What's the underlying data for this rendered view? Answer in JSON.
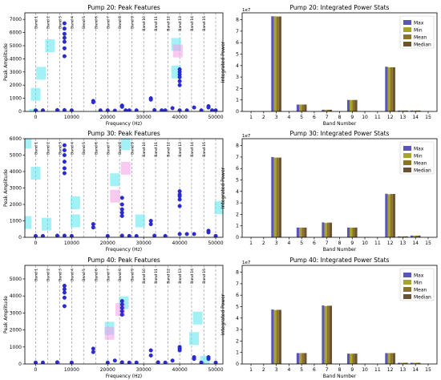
{
  "figure": {
    "colors": {
      "scatter": "#2b2bd6",
      "scatter_edge": "#1e1ea8",
      "band_line": "#8a8a8a",
      "cyan_patch": "#55e6ee",
      "pink_patch": "#f49de8",
      "max": "#5a56b5",
      "min": "#a7a32c",
      "mean": "#8b7328",
      "median": "#6a5232"
    }
  },
  "chart_data": [
    {
      "type": "scatter",
      "title": "Pump 20: Peak Features",
      "xlabel": "Frequency (Hz)",
      "ylabel": "Peak Amplitude",
      "xlim": [
        -3000,
        52000
      ],
      "ylim": [
        0,
        7500
      ],
      "xticks": [
        0,
        10000,
        20000,
        30000,
        40000,
        50000
      ],
      "xtick_labels": [
        "0",
        "10000",
        "20000",
        "30000",
        "40000",
        "50000"
      ],
      "yticks": [
        0,
        1000,
        2000,
        3000,
        4000,
        5000,
        6000,
        7000
      ],
      "ytick_labels": [
        "0",
        "1000",
        "2000",
        "3000",
        "4000",
        "5000",
        "6000",
        "7000"
      ],
      "band_labels": [
        "Band 1",
        "Band 2",
        "Band 3",
        "Band 4",
        "Band 5",
        "Band 6",
        "Band 7",
        "Band 8",
        "Band 9",
        "Band 10",
        "Band 11",
        "Band 12",
        "Band 13",
        "Band 14",
        "Band 15"
      ],
      "band_edges": [
        0,
        3300,
        6700,
        10000,
        13300,
        16700,
        20000,
        23300,
        26700,
        30000,
        33300,
        36700,
        40000,
        43300,
        46700,
        50000
      ],
      "points": {
        "x": [
          0,
          2000,
          6000,
          8000,
          8000,
          8000,
          8000,
          8000,
          8000,
          8000,
          8000,
          10000,
          16000,
          16000,
          18000,
          20000,
          22000,
          24000,
          24000,
          25000,
          26000,
          28000,
          32000,
          32000,
          33000,
          35000,
          36000,
          38000,
          40000,
          40000,
          40000,
          40000,
          40000,
          40000,
          40000,
          42000,
          44000,
          46000,
          48000,
          48000,
          49000,
          50000
        ],
        "y": [
          80,
          80,
          100,
          6700,
          6300,
          5900,
          5600,
          5300,
          4800,
          4200,
          100,
          80,
          800,
          700,
          80,
          80,
          60,
          450,
          350,
          80,
          80,
          80,
          1000,
          900,
          100,
          80,
          80,
          250,
          3200,
          3000,
          2800,
          2600,
          2300,
          2000,
          80,
          80,
          300,
          80,
          400,
          300,
          80,
          80
        ]
      },
      "patches": [
        {
          "x": 0,
          "y": 1300,
          "color": "cyan"
        },
        {
          "x": 1500,
          "y": 2900,
          "color": "cyan"
        },
        {
          "x": 4000,
          "y": 5000,
          "color": "cyan"
        },
        {
          "x": -500,
          "y": -300,
          "color": "cyan"
        },
        {
          "x": 39000,
          "y": 5100,
          "color": "cyan"
        },
        {
          "x": 39500,
          "y": 4600,
          "color": "pink"
        },
        {
          "x": 39000,
          "y": 3000,
          "color": "cyan"
        }
      ]
    },
    {
      "type": "bar",
      "title": "Pump 20: Integrated Power Stats",
      "xlabel": "Band Number",
      "ylabel": "Integrated Power",
      "exponent_label": "1e7",
      "categories": [
        "1",
        "2",
        "3",
        "4",
        "5",
        "6",
        "7",
        "8",
        "9",
        "10",
        "11",
        "12",
        "13",
        "14",
        "15"
      ],
      "ylim": [
        0,
        8.6
      ],
      "yticks": [
        0,
        1,
        2,
        3,
        4,
        5,
        6,
        7,
        8
      ],
      "legend_position": "top-right",
      "series": [
        {
          "name": "Max",
          "values": [
            0,
            0,
            8.3,
            0,
            0.6,
            0,
            0.15,
            0,
            1.0,
            0.02,
            0,
            3.9,
            0.08,
            0.08,
            0
          ]
        },
        {
          "name": "Min",
          "values": [
            0,
            0,
            8.3,
            0,
            0.6,
            0,
            0.15,
            0,
            1.0,
            0.02,
            0,
            3.85,
            0.08,
            0.08,
            0
          ]
        },
        {
          "name": "Mean",
          "values": [
            0,
            0,
            8.28,
            0,
            0.6,
            0,
            0.15,
            0,
            1.0,
            0.02,
            0,
            3.85,
            0.08,
            0.08,
            0
          ]
        },
        {
          "name": "Median",
          "values": [
            0,
            0,
            8.28,
            0,
            0.6,
            0,
            0.15,
            0,
            1.0,
            0.02,
            0,
            3.85,
            0.08,
            0.08,
            0
          ]
        }
      ]
    },
    {
      "type": "scatter",
      "title": "Pump 30: Peak Features",
      "xlabel": "Frequency (Hz)",
      "ylabel": "Peak Amplitude",
      "xlim": [
        -3000,
        52000
      ],
      "ylim": [
        0,
        6000
      ],
      "xticks": [
        0,
        10000,
        20000,
        30000,
        40000,
        50000
      ],
      "xtick_labels": [
        "0",
        "10000",
        "20000",
        "30000",
        "40000",
        "50000"
      ],
      "yticks": [
        0,
        1000,
        2000,
        3000,
        4000,
        5000,
        6000
      ],
      "ytick_labels": [
        "0",
        "1000",
        "2000",
        "3000",
        "4000",
        "5000",
        "6000"
      ],
      "band_labels": [
        "Band 1",
        "Band 2",
        "Band 3",
        "Band 4",
        "Band 5",
        "Band 6",
        "Band 7",
        "Band 8",
        "Band 9",
        "Band 10",
        "Band 11",
        "Band 12",
        "Band 13",
        "Band 14",
        "Band 15"
      ],
      "band_edges": [
        0,
        3300,
        6700,
        10000,
        13300,
        16700,
        20000,
        23300,
        26700,
        30000,
        33300,
        36700,
        40000,
        43300,
        46700,
        50000
      ],
      "points": {
        "x": [
          0,
          2000,
          6000,
          8000,
          8000,
          8000,
          8000,
          8000,
          8000,
          8000,
          10000,
          16000,
          16000,
          20000,
          24000,
          24000,
          24000,
          24000,
          24000,
          24000,
          26000,
          28000,
          32000,
          32000,
          33000,
          36000,
          40000,
          40000,
          40000,
          40000,
          40000,
          40000,
          42000,
          44000,
          48000,
          48000,
          50000
        ],
        "y": [
          80,
          80,
          100,
          5600,
          5300,
          5000,
          4600,
          4200,
          3900,
          100,
          80,
          800,
          600,
          80,
          2400,
          2000,
          1700,
          1500,
          1300,
          100,
          80,
          80,
          1000,
          800,
          100,
          80,
          2800,
          2600,
          2500,
          2300,
          1900,
          200,
          200,
          200,
          400,
          300,
          80
        ]
      },
      "patches": [
        {
          "x": -2500,
          "y": 5800,
          "color": "cyan"
        },
        {
          "x": -2500,
          "y": 900,
          "color": "cyan"
        },
        {
          "x": 0,
          "y": 3900,
          "color": "cyan"
        },
        {
          "x": 3000,
          "y": 800,
          "color": "cyan"
        },
        {
          "x": 11000,
          "y": 2100,
          "color": "cyan"
        },
        {
          "x": 11000,
          "y": 1000,
          "color": "cyan"
        },
        {
          "x": 22000,
          "y": 3500,
          "color": "cyan"
        },
        {
          "x": 22000,
          "y": 2500,
          "color": "pink"
        },
        {
          "x": 25000,
          "y": 5700,
          "color": "cyan"
        },
        {
          "x": 25000,
          "y": 4200,
          "color": "pink"
        },
        {
          "x": 29000,
          "y": 1000,
          "color": "cyan"
        },
        {
          "x": 51000,
          "y": 1800,
          "color": "cyan"
        }
      ]
    },
    {
      "type": "bar",
      "title": "Pump 30: Integrated Power Stats",
      "xlabel": "Band Number",
      "ylabel": "Integrated Power",
      "exponent_label": "1e7",
      "categories": [
        "1",
        "2",
        "3",
        "4",
        "5",
        "6",
        "7",
        "8",
        "9",
        "10",
        "11",
        "12",
        "13",
        "14",
        "15"
      ],
      "ylim": [
        0,
        8.6
      ],
      "yticks": [
        0,
        1,
        2,
        3,
        4,
        5,
        6,
        7,
        8
      ],
      "legend_position": "top-right",
      "series": [
        {
          "name": "Max",
          "values": [
            0,
            0,
            7.0,
            0,
            0.85,
            0,
            1.3,
            0,
            0.85,
            0.02,
            0,
            3.8,
            0.08,
            0.15,
            0
          ]
        },
        {
          "name": "Min",
          "values": [
            0,
            0,
            6.95,
            0,
            0.85,
            0,
            1.25,
            0,
            0.85,
            0.02,
            0,
            3.75,
            0.08,
            0.15,
            0
          ]
        },
        {
          "name": "Mean",
          "values": [
            0,
            0,
            6.95,
            0,
            0.85,
            0,
            1.28,
            0,
            0.85,
            0.02,
            0,
            3.78,
            0.08,
            0.15,
            0
          ]
        },
        {
          "name": "Median",
          "values": [
            0,
            0,
            6.95,
            0,
            0.85,
            0,
            1.28,
            0,
            0.85,
            0.02,
            0,
            3.78,
            0.08,
            0.15,
            0
          ]
        }
      ]
    },
    {
      "type": "scatter",
      "title": "Pump 40: Peak Features",
      "xlabel": "Frequency (Hz)",
      "ylabel": "Peak Amplitude",
      "xlim": [
        -3000,
        52000
      ],
      "ylim": [
        0,
        5800
      ],
      "xticks": [
        0,
        10000,
        20000,
        30000,
        40000,
        50000
      ],
      "xtick_labels": [
        "0",
        "10000",
        "20000",
        "30000",
        "40000",
        "50000"
      ],
      "yticks": [
        0,
        1000,
        2000,
        3000,
        4000,
        5000
      ],
      "ytick_labels": [
        "0",
        "1000",
        "2000",
        "3000",
        "4000",
        "5000"
      ],
      "band_labels": [
        "Band 1",
        "Band 2",
        "Band 3",
        "Band 4",
        "Band 5",
        "Band 6",
        "Band 7",
        "Band 8",
        "Band 9",
        "Band 10",
        "Band 11",
        "Band 12",
        "Band 13",
        "Band 14",
        "Band 15"
      ],
      "band_edges": [
        0,
        3300,
        6700,
        10000,
        13300,
        16700,
        20000,
        23300,
        26700,
        30000,
        33300,
        36700,
        40000,
        43300,
        46700,
        50000
      ],
      "points": {
        "x": [
          0,
          2000,
          6000,
          8000,
          8000,
          8000,
          8000,
          8000,
          10000,
          16000,
          16000,
          20000,
          22000,
          24000,
          24000,
          24000,
          24000,
          24000,
          24000,
          26000,
          28000,
          32000,
          32000,
          34000,
          36000,
          38000,
          40000,
          40000,
          40000,
          44000,
          44000,
          46000,
          48000,
          48000,
          50000
        ],
        "y": [
          80,
          80,
          100,
          4600,
          4400,
          4200,
          3900,
          3400,
          80,
          900,
          700,
          80,
          200,
          3700,
          3500,
          3300,
          3100,
          2900,
          100,
          80,
          80,
          800,
          500,
          100,
          80,
          200,
          1000,
          900,
          800,
          400,
          300,
          80,
          400,
          300,
          80
        ]
      },
      "patches": [
        {
          "x": 20500,
          "y": 2100,
          "color": "cyan"
        },
        {
          "x": 20500,
          "y": 1800,
          "color": "pink"
        },
        {
          "x": 24500,
          "y": 3600,
          "color": "cyan"
        },
        {
          "x": 23500,
          "y": 3200,
          "color": "pink"
        },
        {
          "x": 45000,
          "y": 2700,
          "color": "cyan"
        },
        {
          "x": 44000,
          "y": 1500,
          "color": "cyan"
        },
        {
          "x": 47000,
          "y": 100,
          "color": "cyan"
        }
      ]
    },
    {
      "type": "bar",
      "title": "Pump 40: Integrated Power Stats",
      "xlabel": "Band Number",
      "ylabel": "Integrated Power",
      "exponent_label": "1e7",
      "categories": [
        "1",
        "2",
        "3",
        "4",
        "5",
        "6",
        "7",
        "8",
        "9",
        "10",
        "11",
        "12",
        "13",
        "14",
        "15"
      ],
      "ylim": [
        0,
        8.6
      ],
      "yticks": [
        0,
        1,
        2,
        3,
        4,
        5,
        6,
        7,
        8
      ],
      "legend_position": "top-right",
      "series": [
        {
          "name": "Max",
          "values": [
            0,
            0,
            4.75,
            0,
            0.95,
            0,
            5.1,
            0,
            0.9,
            0.02,
            0,
            0.95,
            0.1,
            0.1,
            0
          ]
        },
        {
          "name": "Min",
          "values": [
            0,
            0,
            4.7,
            0,
            0.95,
            0,
            5.05,
            0,
            0.9,
            0.02,
            0,
            0.95,
            0.1,
            0.1,
            0
          ]
        },
        {
          "name": "Mean",
          "values": [
            0,
            0,
            4.72,
            0,
            0.95,
            0,
            5.08,
            0,
            0.9,
            0.02,
            0,
            0.95,
            0.1,
            0.1,
            0
          ]
        },
        {
          "name": "Median",
          "values": [
            0,
            0,
            4.72,
            0,
            0.95,
            0,
            5.08,
            0,
            0.9,
            0.02,
            0,
            0.95,
            0.1,
            0.1,
            0
          ]
        }
      ]
    }
  ]
}
